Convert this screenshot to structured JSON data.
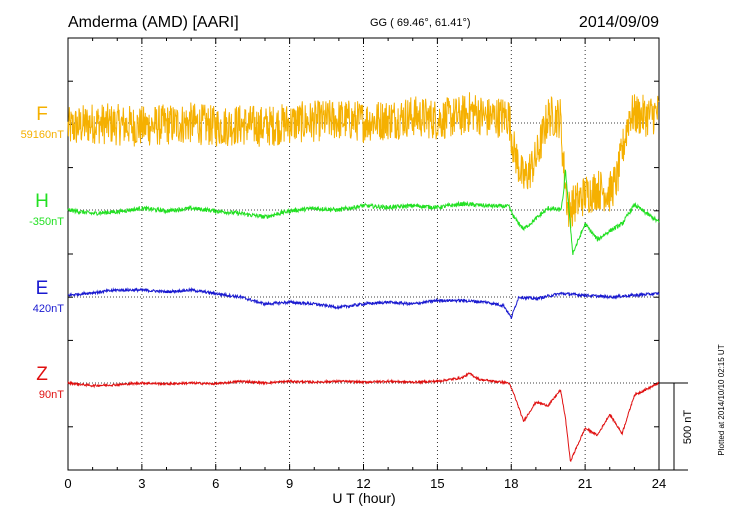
{
  "header": {
    "station": "Amderma (AMD)  [AARI]",
    "coords": "GG ( 69.46°,  61.41°)",
    "date": "2014/09/09"
  },
  "footer": {
    "plotted": "Plotted at 2014/10/10 02:15 UT"
  },
  "scale": {
    "label": "500 nT",
    "value_nT": 500
  },
  "colors": {
    "F": "#f5b000",
    "H": "#22e022",
    "E": "#1a1ad0",
    "Z": "#e01010"
  },
  "chart_data": {
    "type": "line",
    "xlabel": "U T (hour)",
    "xlim": [
      0,
      24
    ],
    "x_ticks": [
      0,
      3,
      6,
      9,
      12,
      15,
      18,
      21,
      24
    ],
    "x_tick_labels": [
      "0",
      "3",
      "6",
      "9",
      "12",
      "15",
      "18",
      "21",
      "24"
    ],
    "grid": true,
    "series": [
      {
        "name": "F",
        "baseline_label": "59160nT",
        "color": "#f5b000",
        "noise_nT": 120,
        "x": [
          0,
          1,
          2,
          3,
          4,
          5,
          6,
          7,
          8,
          9,
          10,
          11,
          12,
          13,
          14,
          15,
          16,
          16.4,
          17,
          17.9,
          18.1,
          18.5,
          19,
          19.5,
          20,
          20.1,
          20.3,
          21,
          21.5,
          22,
          22.3,
          22.8,
          23.5,
          24
        ],
        "y": [
          -30,
          0,
          -10,
          -20,
          -10,
          0,
          -20,
          -10,
          -20,
          0,
          10,
          20,
          10,
          20,
          40,
          20,
          40,
          70,
          30,
          40,
          -150,
          -330,
          -210,
          40,
          30,
          -200,
          -500,
          -410,
          -380,
          -400,
          -320,
          50,
          40,
          60
        ]
      },
      {
        "name": "H",
        "baseline_label": "-350nT",
        "color": "#22e022",
        "noise_nT": 12,
        "x": [
          0,
          1,
          2,
          3,
          4,
          5,
          6,
          7,
          8,
          9,
          10,
          11,
          12,
          13,
          14,
          15,
          16,
          17,
          17.9,
          18.1,
          18.5,
          19,
          19.5,
          20,
          20.1,
          20.2,
          20.5,
          21,
          21.5,
          22,
          22.5,
          23,
          24
        ],
        "y": [
          0,
          -20,
          -10,
          10,
          -5,
          10,
          -5,
          -20,
          -40,
          -5,
          10,
          0,
          25,
          15,
          25,
          15,
          35,
          25,
          20,
          -40,
          -110,
          -50,
          10,
          0,
          60,
          230,
          -250,
          -80,
          -170,
          -120,
          -80,
          30,
          -70
        ]
      },
      {
        "name": "E",
        "baseline_label": "420nT",
        "color": "#1a1ad0",
        "noise_nT": 8,
        "x": [
          0,
          1,
          2,
          3,
          4,
          5,
          6,
          7,
          8,
          9,
          10,
          11,
          12,
          13,
          14,
          15,
          16,
          17,
          17.7,
          18,
          18.3,
          19,
          20,
          21,
          22,
          23,
          24
        ],
        "y": [
          10,
          25,
          40,
          40,
          30,
          40,
          20,
          0,
          -40,
          -30,
          -40,
          -60,
          -40,
          -30,
          -40,
          -20,
          -20,
          -30,
          -50,
          -120,
          0,
          -10,
          20,
          10,
          0,
          10,
          20
        ]
      },
      {
        "name": "Z",
        "baseline_label": "90nT",
        "color": "#e01010",
        "noise_nT": 6,
        "x": [
          0,
          1,
          2,
          3,
          4,
          5,
          6,
          7,
          8,
          9,
          10,
          11,
          12,
          13,
          14,
          15,
          16,
          16.3,
          16.7,
          17,
          17.9,
          18.1,
          18.5,
          19,
          19.5,
          20,
          20.2,
          20.4,
          21,
          21.5,
          22,
          22.5,
          23,
          24
        ],
        "y": [
          0,
          -15,
          -10,
          0,
          -5,
          0,
          -5,
          10,
          0,
          10,
          5,
          10,
          5,
          10,
          5,
          10,
          30,
          55,
          20,
          15,
          0,
          -60,
          -220,
          -110,
          -130,
          -40,
          -200,
          -450,
          -260,
          -300,
          -180,
          -290,
          -70,
          0
        ]
      }
    ]
  }
}
